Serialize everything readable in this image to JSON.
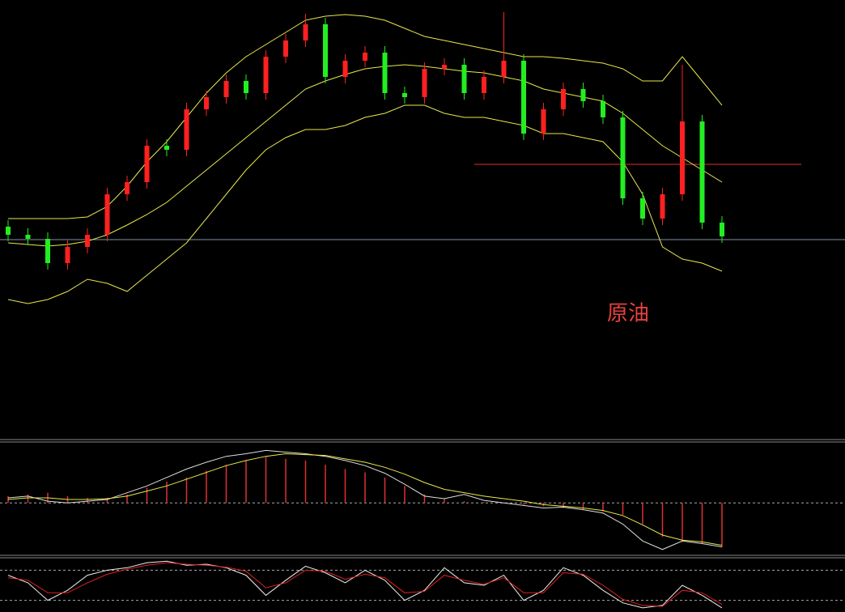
{
  "chart_data": [
    {
      "type": "candlestick",
      "annotation": "原油",
      "ylim": [
        0,
        540
      ],
      "up_color": "#ff2020",
      "down_color": "#22ee22",
      "open": [
        260,
        250,
        245,
        215,
        235,
        250,
        300,
        315,
        360,
        355,
        405,
        420,
        440,
        425,
        470,
        490,
        510,
        445,
        465,
        475,
        425,
        420,
        455,
        460,
        425,
        445,
        465,
        375,
        405,
        430,
        415,
        395,
        295,
        270,
        300,
        390,
        265
      ],
      "high": [
        268,
        258,
        253,
        243,
        258,
        308,
        323,
        368,
        368,
        413,
        428,
        448,
        448,
        478,
        498,
        523,
        518,
        473,
        483,
        483,
        433,
        463,
        468,
        468,
        453,
        525,
        473,
        413,
        438,
        438,
        423,
        403,
        303,
        308,
        460,
        398,
        273
      ],
      "low": [
        242,
        237,
        207,
        207,
        227,
        242,
        292,
        307,
        347,
        347,
        397,
        412,
        417,
        417,
        462,
        482,
        437,
        437,
        457,
        417,
        412,
        412,
        447,
        417,
        417,
        437,
        367,
        367,
        397,
        407,
        387,
        287,
        262,
        262,
        292,
        257,
        240
      ],
      "close": [
        250,
        245,
        215,
        235,
        250,
        300,
        315,
        360,
        355,
        405,
        420,
        440,
        425,
        470,
        490,
        510,
        445,
        465,
        475,
        425,
        420,
        455,
        460,
        425,
        445,
        465,
        375,
        405,
        430,
        415,
        395,
        295,
        270,
        300,
        390,
        265,
        248
      ],
      "series": [
        {
          "color": "#e8e84a",
          "values": [
            270,
            270,
            270,
            270,
            272,
            285,
            310,
            340,
            365,
            395,
            425,
            450,
            470,
            485,
            500,
            515,
            520,
            522,
            520,
            515,
            505,
            495,
            490,
            485,
            480,
            475,
            470,
            470,
            468,
            465,
            462,
            455,
            440,
            440,
            470,
            440,
            410
          ]
        },
        {
          "color": "#e8e84a",
          "values": [
            240,
            238,
            236,
            238,
            242,
            250,
            262,
            275,
            290,
            310,
            330,
            350,
            370,
            390,
            410,
            430,
            440,
            448,
            455,
            458,
            460,
            458,
            455,
            452,
            450,
            445,
            440,
            430,
            425,
            420,
            415,
            400,
            380,
            360,
            345,
            330,
            315
          ]
        },
        {
          "color": "#e8e84a",
          "values": [
            170,
            165,
            170,
            180,
            195,
            190,
            180,
            200,
            220,
            240,
            270,
            300,
            330,
            355,
            370,
            380,
            380,
            385,
            395,
            400,
            410,
            410,
            400,
            395,
            395,
            390,
            385,
            375,
            375,
            370,
            365,
            340,
            300,
            235,
            220,
            215,
            205
          ]
        }
      ],
      "hlines": [
        {
          "value": 337,
          "color": "#e03030"
        },
        {
          "value": 244,
          "color": "#7f95a8"
        }
      ]
    },
    {
      "type": "macd",
      "ylim": [
        -60,
        70
      ],
      "histogram": {
        "color": "#e03030",
        "values": [
          8,
          10,
          12,
          8,
          6,
          6,
          10,
          18,
          25,
          30,
          38,
          45,
          50,
          55,
          52,
          50,
          45,
          40,
          36,
          30,
          20,
          10,
          5,
          2,
          1,
          0,
          -2,
          -4,
          -6,
          -8,
          -10,
          -14,
          -25,
          -40,
          -45,
          -48,
          -52
        ]
      },
      "series": [
        {
          "color": "#dddddd",
          "values": [
            6,
            8,
            2,
            0,
            2,
            4,
            12,
            20,
            30,
            40,
            48,
            55,
            58,
            62,
            60,
            58,
            55,
            50,
            44,
            35,
            22,
            8,
            5,
            10,
            3,
            0,
            -3,
            -6,
            -5,
            -8,
            -12,
            -25,
            -45,
            -55,
            -45,
            -48,
            -52
          ]
        },
        {
          "color": "#e8e84a",
          "values": [
            4,
            6,
            6,
            4,
            4,
            5,
            8,
            14,
            20,
            28,
            36,
            44,
            50,
            55,
            58,
            57,
            56,
            52,
            48,
            42,
            34,
            24,
            16,
            12,
            8,
            5,
            2,
            -2,
            -4,
            -6,
            -9,
            -15,
            -26,
            -38,
            -44,
            -46,
            -50
          ]
        }
      ]
    },
    {
      "type": "line",
      "ylim": [
        0,
        100
      ],
      "levels": [
        80,
        20
      ],
      "series": [
        {
          "color": "#eeeeee",
          "values": [
            70,
            55,
            20,
            40,
            70,
            80,
            85,
            95,
            98,
            90,
            92,
            85,
            70,
            30,
            60,
            88,
            75,
            55,
            80,
            60,
            20,
            40,
            85,
            55,
            50,
            70,
            20,
            40,
            85,
            70,
            40,
            15,
            5,
            10,
            50,
            30,
            5
          ]
        },
        {
          "color": "#e02020",
          "values": [
            65,
            60,
            35,
            35,
            55,
            72,
            82,
            90,
            95,
            92,
            90,
            86,
            78,
            45,
            55,
            80,
            78,
            62,
            72,
            65,
            35,
            38,
            70,
            60,
            52,
            65,
            35,
            35,
            75,
            72,
            50,
            22,
            10,
            8,
            40,
            35,
            12
          ]
        }
      ]
    }
  ]
}
